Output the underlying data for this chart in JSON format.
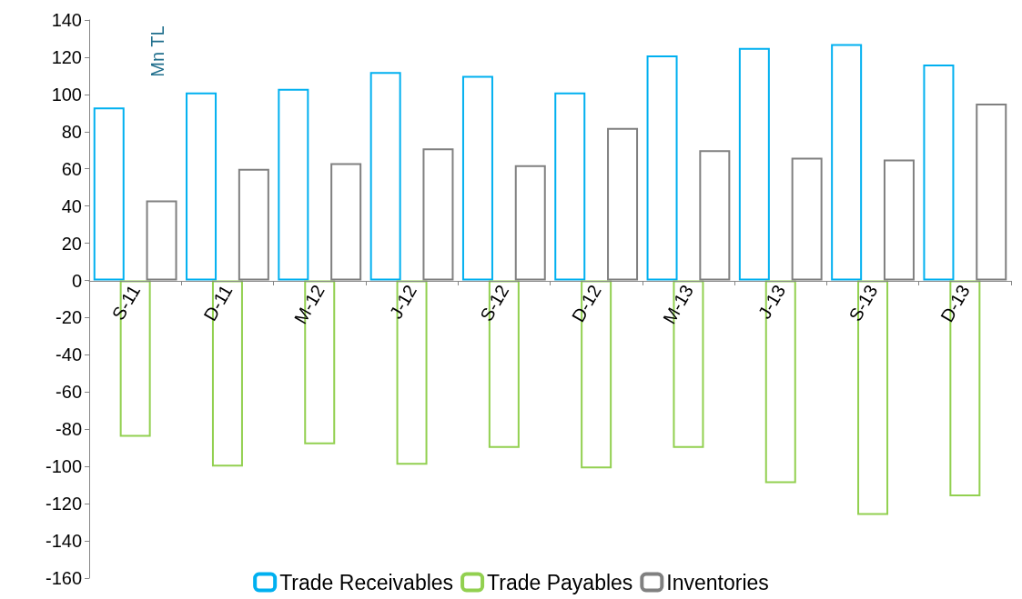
{
  "chart_data": {
    "type": "bar",
    "ylabel": "Mn TL",
    "categories": [
      "S-11",
      "D-11",
      "M-12",
      "J-12",
      "S-12",
      "D-12",
      "M-13",
      "J-13",
      "S-13",
      "D-13"
    ],
    "series": [
      {
        "name": "Trade Receivables",
        "color": "#00b0f0",
        "values": [
          93,
          101,
          103,
          112,
          110,
          101,
          121,
          125,
          127,
          116
        ]
      },
      {
        "name": "Trade Payables",
        "color": "#92d050",
        "values": [
          -84,
          -100,
          -88,
          -99,
          -90,
          -101,
          -90,
          -109,
          -126,
          -116
        ]
      },
      {
        "name": "Inventories",
        "color": "#808080",
        "values": [
          43,
          60,
          63,
          71,
          62,
          82,
          70,
          66,
          65,
          95
        ]
      }
    ],
    "ylim": [
      -160,
      140
    ],
    "yticks": [
      -160,
      -140,
      -120,
      -100,
      -80,
      -60,
      -40,
      -20,
      0,
      20,
      40,
      60,
      80,
      100,
      120,
      140
    ],
    "legend": "bottom"
  }
}
